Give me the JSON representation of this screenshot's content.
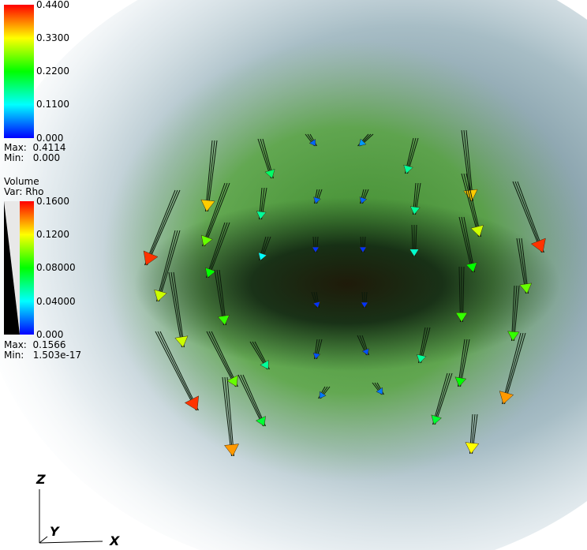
{
  "vector_legend": {
    "ticks": [
      "0.4400",
      "0.3300",
      "0.2200",
      "0.1100",
      "0.000"
    ],
    "max_label": "Max:",
    "max_value": "0.4114",
    "min_label": "Min:",
    "min_value": "0.000"
  },
  "volume_legend": {
    "title": "Volume",
    "var_label": "Var: Rho",
    "ticks": [
      "0.1600",
      "0.1200",
      "0.08000",
      "0.04000",
      "0.000"
    ],
    "max_label": "Max:",
    "max_value": "0.1566",
    "min_label": "Min:",
    "min_value": "1.503e-17"
  },
  "triad": {
    "z_label": "Z",
    "y_label": "Y",
    "x_label": "X"
  },
  "colormap": {
    "stops": [
      "#0000ff",
      "#00ffff",
      "#00ff00",
      "#ffff00",
      "#ff0000"
    ]
  }
}
